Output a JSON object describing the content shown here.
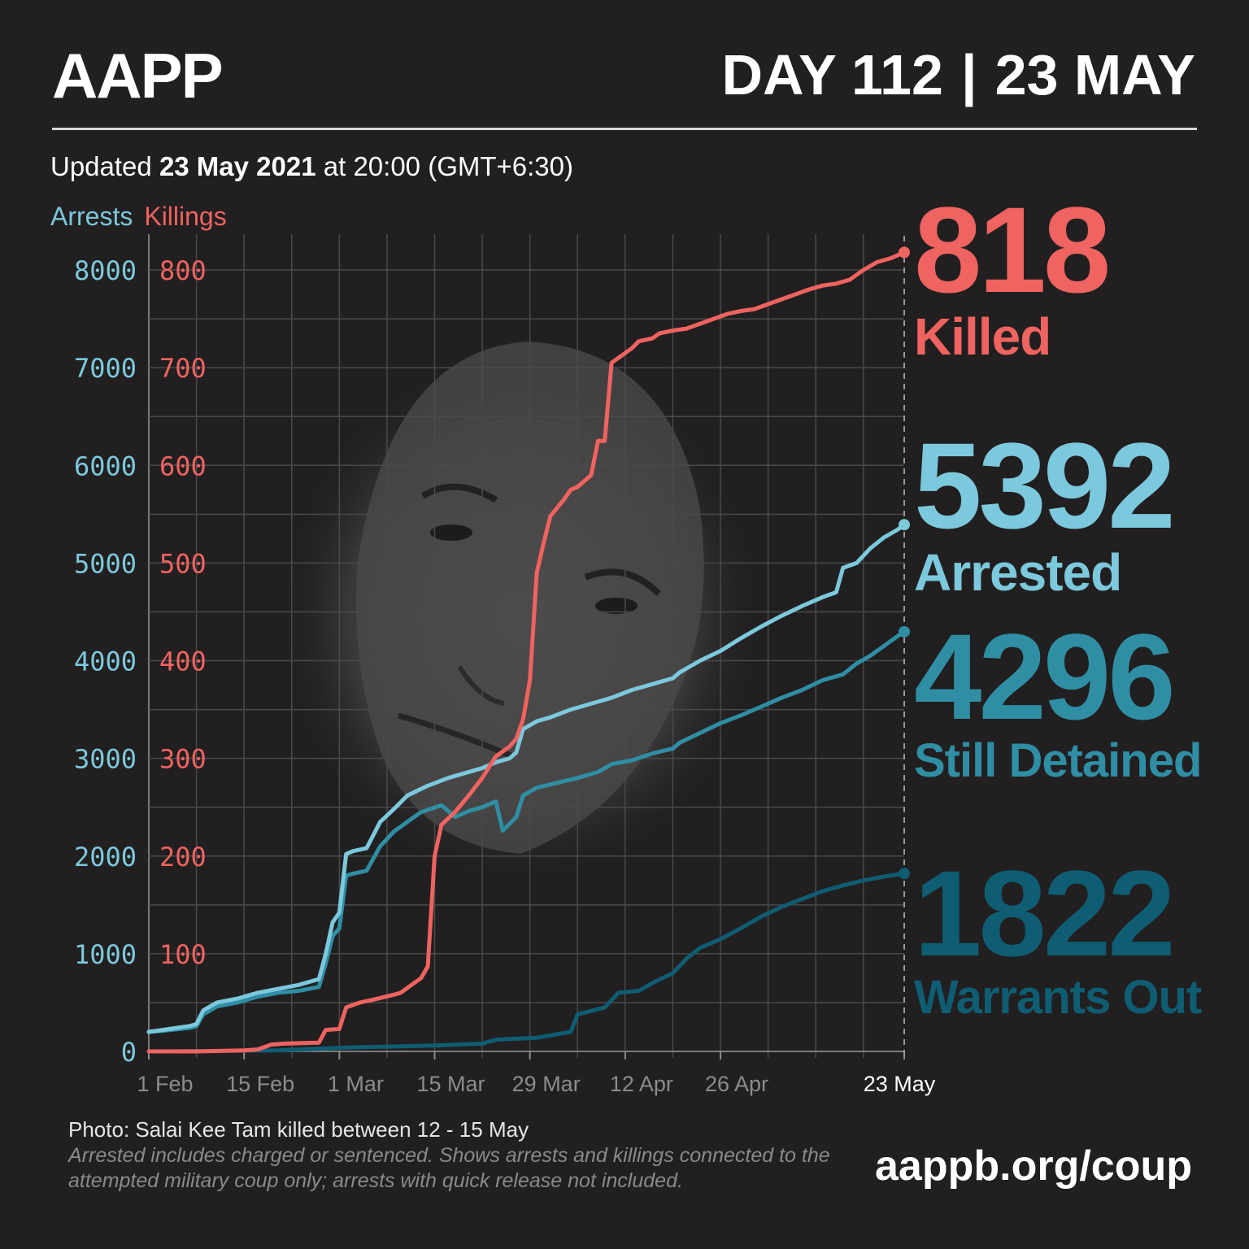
{
  "header": {
    "brand": "AAPP",
    "day_label": "DAY 112",
    "separator": "|",
    "date_label": "23 MAY"
  },
  "updated": {
    "prefix": "Updated",
    "date": "23 May 2021",
    "suffix": "at 20:00 (GMT+6:30)"
  },
  "legend": {
    "arrests": "Arrests",
    "killings": "Killings"
  },
  "stats": {
    "killed": {
      "value": "818",
      "label": "Killed"
    },
    "arrested": {
      "value": "5392",
      "label": "Arrested"
    },
    "detained": {
      "value": "4296",
      "label": "Still Detained"
    },
    "warrants": {
      "value": "1822",
      "label": "Warrants Out"
    }
  },
  "footer": {
    "photo_credit": "Photo: Salai Kee Tam killed between 12 - 15 May",
    "note": "Arrested includes charged or sentenced. Shows arrests and killings connected to the attempted military coup only; arrests with quick release not included.",
    "url": "aappb.org/coup"
  },
  "colors": {
    "background": "#211f20",
    "killings": "#ef6360",
    "arrested": "#7cc8dc",
    "detained": "#2f8ea4",
    "warrants": "#0f5d73",
    "grid": "#4a4a4a"
  },
  "chart_data": {
    "type": "line",
    "x_axis": {
      "unit": "day",
      "range_days": [
        1,
        112
      ],
      "tick_days": [
        1,
        15,
        29,
        43,
        57,
        71,
        85,
        112
      ],
      "tick_labels": [
        "1 Feb",
        "15 Feb",
        "1 Mar",
        "15 Mar",
        "29 Mar",
        "12 Apr",
        "26 Apr",
        "23 May"
      ]
    },
    "y_axis_left": {
      "label": "Arrests",
      "ylim": [
        0,
        8000
      ],
      "ticks": [
        0,
        1000,
        2000,
        3000,
        4000,
        5000,
        6000,
        7000,
        8000
      ],
      "tick_labels": [
        "0",
        "1000",
        "2000",
        "3000",
        "4000",
        "5000",
        "6000",
        "7000",
        "8000"
      ]
    },
    "y_axis_right": {
      "label": "Killings",
      "ylim": [
        0,
        800
      ],
      "ticks": [
        100,
        200,
        300,
        400,
        500,
        600,
        700,
        800
      ],
      "tick_labels": [
        "100",
        "200",
        "300",
        "400",
        "500",
        "600",
        "700",
        "800"
      ]
    },
    "grid": true,
    "series": [
      {
        "name": "Killings",
        "axis": "killings",
        "color": "#ef6360",
        "points": [
          [
            1,
            0
          ],
          [
            8,
            0
          ],
          [
            15,
            1
          ],
          [
            17,
            2
          ],
          [
            19,
            7
          ],
          [
            21,
            8
          ],
          [
            26,
            9
          ],
          [
            27,
            22
          ],
          [
            29,
            23
          ],
          [
            30,
            45
          ],
          [
            32,
            50
          ],
          [
            34,
            53
          ],
          [
            37,
            58
          ],
          [
            38,
            60
          ],
          [
            40,
            70
          ],
          [
            41,
            75
          ],
          [
            42,
            87
          ],
          [
            43,
            200
          ],
          [
            44,
            232
          ],
          [
            46,
            245
          ],
          [
            48,
            262
          ],
          [
            50,
            280
          ],
          [
            52,
            302
          ],
          [
            54,
            312
          ],
          [
            55,
            320
          ],
          [
            56,
            340
          ],
          [
            57,
            380
          ],
          [
            58,
            490
          ],
          [
            59,
            520
          ],
          [
            60,
            548
          ],
          [
            62,
            565
          ],
          [
            63,
            575
          ],
          [
            64,
            578
          ],
          [
            66,
            590
          ],
          [
            67,
            625
          ],
          [
            68,
            625
          ],
          [
            69,
            705
          ],
          [
            70,
            710
          ],
          [
            72,
            720
          ],
          [
            73,
            727
          ],
          [
            75,
            730
          ],
          [
            76,
            735
          ],
          [
            78,
            738
          ],
          [
            80,
            740
          ],
          [
            82,
            745
          ],
          [
            84,
            750
          ],
          [
            86,
            755
          ],
          [
            88,
            758
          ],
          [
            90,
            760
          ],
          [
            92,
            765
          ],
          [
            94,
            770
          ],
          [
            96,
            775
          ],
          [
            98,
            780
          ],
          [
            100,
            784
          ],
          [
            102,
            786
          ],
          [
            104,
            790
          ],
          [
            106,
            800
          ],
          [
            108,
            808
          ],
          [
            110,
            812
          ],
          [
            112,
            818
          ]
        ]
      },
      {
        "name": "Arrested",
        "axis": "arrests",
        "color": "#7cc8dc",
        "points": [
          [
            1,
            200
          ],
          [
            3,
            220
          ],
          [
            7,
            260
          ],
          [
            8,
            280
          ],
          [
            9,
            420
          ],
          [
            11,
            500
          ],
          [
            14,
            540
          ],
          [
            17,
            600
          ],
          [
            20,
            640
          ],
          [
            23,
            680
          ],
          [
            26,
            740
          ],
          [
            27,
            1000
          ],
          [
            28,
            1320
          ],
          [
            29,
            1420
          ],
          [
            30,
            2020
          ],
          [
            31,
            2050
          ],
          [
            33,
            2080
          ],
          [
            35,
            2350
          ],
          [
            37,
            2480
          ],
          [
            39,
            2620
          ],
          [
            42,
            2720
          ],
          [
            45,
            2800
          ],
          [
            47,
            2840
          ],
          [
            50,
            2900
          ],
          [
            52,
            2960
          ],
          [
            54,
            3000
          ],
          [
            55,
            3060
          ],
          [
            56,
            3300
          ],
          [
            58,
            3380
          ],
          [
            60,
            3420
          ],
          [
            63,
            3500
          ],
          [
            66,
            3560
          ],
          [
            69,
            3620
          ],
          [
            72,
            3700
          ],
          [
            75,
            3760
          ],
          [
            78,
            3820
          ],
          [
            79,
            3880
          ],
          [
            82,
            4000
          ],
          [
            85,
            4100
          ],
          [
            88,
            4230
          ],
          [
            91,
            4350
          ],
          [
            94,
            4460
          ],
          [
            97,
            4560
          ],
          [
            100,
            4650
          ],
          [
            102,
            4700
          ],
          [
            103,
            4950
          ],
          [
            105,
            5000
          ],
          [
            107,
            5150
          ],
          [
            109,
            5260
          ],
          [
            111,
            5340
          ],
          [
            112,
            5392
          ]
        ]
      },
      {
        "name": "Still Detained",
        "axis": "arrests",
        "color": "#2f8ea4",
        "points": [
          [
            1,
            200
          ],
          [
            3,
            210
          ],
          [
            7,
            240
          ],
          [
            8,
            260
          ],
          [
            9,
            380
          ],
          [
            11,
            460
          ],
          [
            14,
            500
          ],
          [
            17,
            560
          ],
          [
            20,
            600
          ],
          [
            23,
            620
          ],
          [
            26,
            660
          ],
          [
            27,
            900
          ],
          [
            28,
            1180
          ],
          [
            29,
            1260
          ],
          [
            30,
            1800
          ],
          [
            31,
            1820
          ],
          [
            33,
            1850
          ],
          [
            35,
            2100
          ],
          [
            37,
            2250
          ],
          [
            39,
            2350
          ],
          [
            41,
            2450
          ],
          [
            44,
            2520
          ],
          [
            46,
            2400
          ],
          [
            48,
            2460
          ],
          [
            50,
            2500
          ],
          [
            52,
            2560
          ],
          [
            53,
            2260
          ],
          [
            55,
            2400
          ],
          [
            56,
            2620
          ],
          [
            58,
            2700
          ],
          [
            61,
            2750
          ],
          [
            64,
            2800
          ],
          [
            67,
            2860
          ],
          [
            69,
            2940
          ],
          [
            72,
            2980
          ],
          [
            75,
            3050
          ],
          [
            78,
            3100
          ],
          [
            79,
            3160
          ],
          [
            82,
            3260
          ],
          [
            85,
            3360
          ],
          [
            88,
            3440
          ],
          [
            91,
            3530
          ],
          [
            94,
            3620
          ],
          [
            97,
            3700
          ],
          [
            100,
            3800
          ],
          [
            103,
            3860
          ],
          [
            105,
            3970
          ],
          [
            107,
            4050
          ],
          [
            109,
            4150
          ],
          [
            111,
            4250
          ],
          [
            112,
            4296
          ]
        ]
      },
      {
        "name": "Warrants Out",
        "axis": "arrests",
        "color": "#0f5d73",
        "points": [
          [
            1,
            0
          ],
          [
            20,
            10
          ],
          [
            30,
            40
          ],
          [
            43,
            60
          ],
          [
            50,
            80
          ],
          [
            52,
            120
          ],
          [
            55,
            130
          ],
          [
            58,
            140
          ],
          [
            63,
            200
          ],
          [
            64,
            380
          ],
          [
            68,
            450
          ],
          [
            70,
            600
          ],
          [
            73,
            620
          ],
          [
            75,
            700
          ],
          [
            78,
            800
          ],
          [
            80,
            950
          ],
          [
            82,
            1060
          ],
          [
            85,
            1150
          ],
          [
            88,
            1260
          ],
          [
            91,
            1380
          ],
          [
            94,
            1480
          ],
          [
            97,
            1560
          ],
          [
            100,
            1640
          ],
          [
            103,
            1700
          ],
          [
            106,
            1750
          ],
          [
            109,
            1790
          ],
          [
            112,
            1822
          ]
        ]
      }
    ]
  }
}
